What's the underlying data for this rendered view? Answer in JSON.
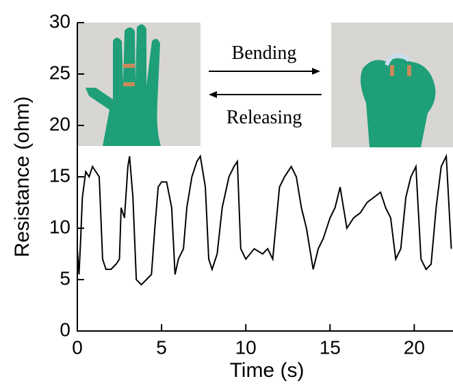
{
  "chart_data": {
    "type": "line",
    "xlabel": "Time (s)",
    "ylabel": "Resistance (ohm)",
    "annotations": [
      "Bending",
      "Releasing"
    ],
    "x": [
      0,
      0.1,
      0.2,
      0.3,
      0.5,
      0.7,
      0.9,
      1.1,
      1.3,
      1.5,
      1.7,
      2.0,
      2.3,
      2.5,
      2.6,
      2.8,
      3.0,
      3.1,
      3.3,
      3.5,
      3.8,
      4.1,
      4.4,
      4.6,
      4.8,
      5.0,
      5.3,
      5.6,
      5.8,
      6.0,
      6.3,
      6.5,
      6.8,
      7.1,
      7.3,
      7.6,
      7.8,
      8.0,
      8.3,
      8.6,
      9.0,
      9.3,
      9.5,
      9.7,
      10.0,
      10.5,
      11.0,
      11.3,
      11.6,
      12.0,
      12.3,
      12.7,
      13.0,
      13.3,
      13.6,
      14.0,
      14.3,
      14.6,
      15.0,
      15.3,
      15.6,
      16.0,
      16.4,
      16.8,
      17.2,
      17.6,
      18.0,
      18.3,
      18.6,
      18.9,
      19.2,
      19.5,
      19.8,
      20.1,
      20.4,
      20.7,
      21.0,
      21.3,
      21.6,
      21.9,
      22.2
    ],
    "values": [
      8,
      5.5,
      9,
      13,
      15.5,
      15,
      16,
      15.5,
      15,
      7,
      6,
      6,
      6.5,
      7,
      12,
      11,
      16,
      17,
      13,
      5,
      4.5,
      5,
      5.5,
      10,
      14,
      14.5,
      14.5,
      12,
      5.5,
      7,
      8,
      12,
      15,
      16.5,
      17,
      14,
      7,
      6,
      7.5,
      12,
      15,
      16,
      16.5,
      8,
      7,
      8,
      7.5,
      8,
      7,
      14,
      15,
      16,
      15,
      12,
      10,
      6,
      8,
      9,
      11,
      12,
      14,
      10,
      11,
      11.5,
      12.5,
      13,
      13.5,
      12,
      11,
      7,
      8,
      13,
      15,
      16,
      7,
      6,
      6.5,
      12,
      16,
      17,
      8
    ],
    "color": "#000000",
    "xlim": [
      0,
      22.3
    ],
    "xticks": [
      0,
      5,
      10,
      15,
      20
    ],
    "ylim": [
      0,
      30
    ],
    "yticks": [
      0,
      5,
      10,
      15,
      20,
      25,
      30
    ]
  }
}
